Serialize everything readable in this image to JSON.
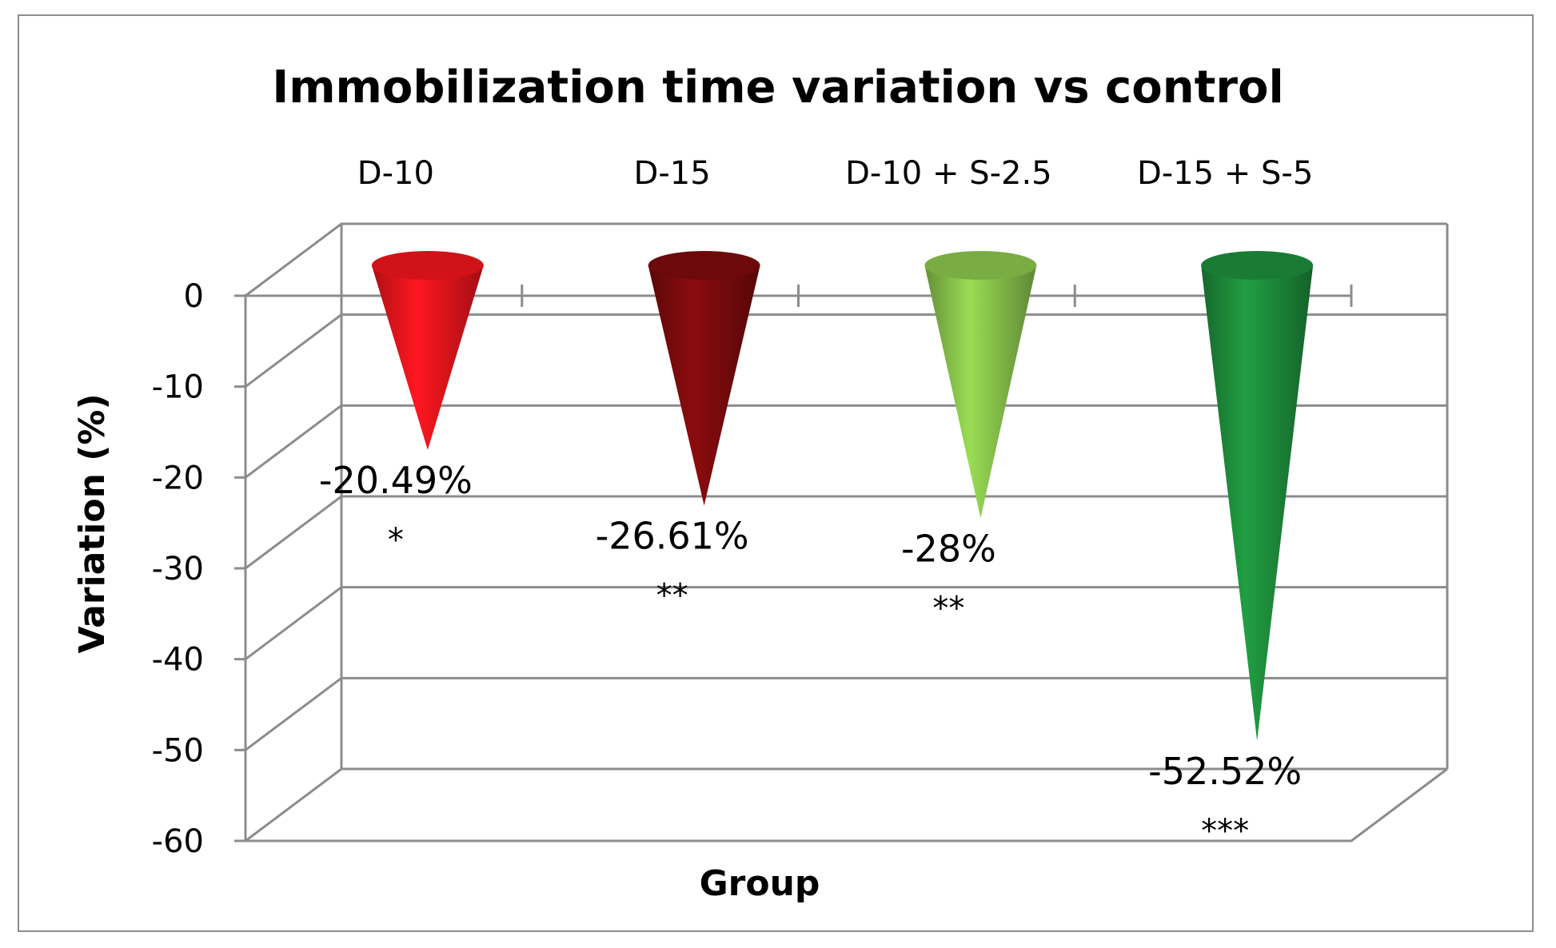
{
  "chart_data": {
    "type": "bar",
    "title": "Immobilization time variation vs control",
    "xlabel": "Group",
    "ylabel": "Variation (%)",
    "ylim": [
      -60,
      0
    ],
    "yticks": [
      "0",
      "-10",
      "-20",
      "-30",
      "-40",
      "-50",
      "-60"
    ],
    "categories": [
      "D-10",
      "D-15",
      "D-10 + S-2.5",
      "D-15 + S-5"
    ],
    "values": [
      -20.49,
      -26.61,
      -28,
      -52.52
    ],
    "data_labels": [
      "-20.49%",
      "-26.61%",
      "-28%",
      "-52.52%"
    ],
    "significance": [
      "*",
      "**",
      "**",
      "***"
    ],
    "colors": [
      "#e8141c",
      "#7a0a0c",
      "#86c04a",
      "#1d8a3a"
    ],
    "grid": true,
    "legend": "none",
    "style": "3d-cone"
  }
}
